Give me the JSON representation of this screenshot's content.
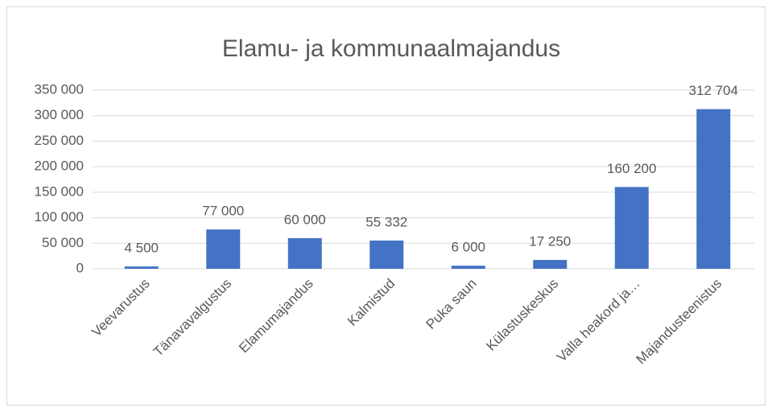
{
  "chart_data": {
    "type": "bar",
    "title": "Elamu- ja kommunaalmajandus",
    "categories": [
      "Veevarustus",
      "Tänavavalgustus",
      "Elamumajandus",
      "Kalmistud",
      "Puka saun",
      "Külastuskeskus",
      "Valla heakord ja…",
      "Majandusteenistus"
    ],
    "values": [
      4500,
      77000,
      60000,
      55332,
      6000,
      17250,
      160200,
      312704
    ],
    "value_labels": [
      "4 500",
      "77 000",
      "60 000",
      "55 332",
      "6 000",
      "17 250",
      "160 200",
      "312 704"
    ],
    "color": "#4472c4",
    "ylim": [
      0,
      350000
    ],
    "yticks": [
      0,
      {
        "value": 50000,
        "label": "50 000"
      },
      {
        "value": 100000,
        "label": "100 000"
      },
      {
        "value": 150000,
        "label": "150 000"
      },
      {
        "value": 200000,
        "label": "200 000"
      },
      {
        "value": 250000,
        "label": "250 000"
      },
      {
        "value": 300000,
        "label": "300 000"
      },
      {
        "value": 350000,
        "label": "350 000"
      }
    ],
    "grid": true
  }
}
